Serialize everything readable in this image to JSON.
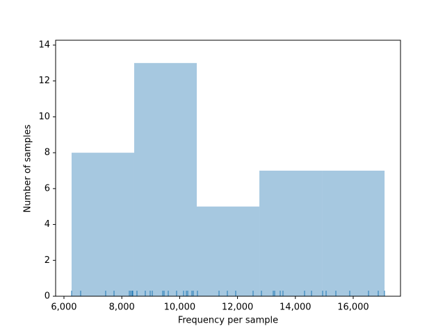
{
  "chart_data": {
    "type": "histogram",
    "x_label": "Frequency per sample",
    "y_label": "Number of samples",
    "bins": [
      6264,
      8428,
      10592,
      12756,
      14920,
      17084
    ],
    "counts": [
      8,
      13,
      5,
      7,
      7
    ],
    "color": "#a6c8e0",
    "rug": [
      6264,
      6577,
      7442,
      7731,
      8260,
      8308,
      8356,
      8380,
      8524,
      8812,
      8981,
      9053,
      9414,
      9462,
      9606,
      9894,
      10135,
      10231,
      10279,
      10423,
      10471,
      10615,
      11361,
      11649,
      11938,
      12539,
      12827,
      13236,
      13284,
      13476,
      13572,
      14318,
      14558,
      14943,
      15063,
      15400,
      15880,
      16530,
      16866,
      17082
    ],
    "rug_color": "#1f77b4",
    "xlim": [
      5712,
      17635
    ],
    "xticks": [
      {
        "value": 6000,
        "label": "6,000"
      },
      {
        "value": 8000,
        "label": "8,000"
      },
      {
        "value": 10000,
        "label": "10,000"
      },
      {
        "value": 12000,
        "label": "12,000"
      },
      {
        "value": 14000,
        "label": "14,000"
      },
      {
        "value": 16000,
        "label": "16,000"
      }
    ],
    "ylim": [
      0,
      14.27
    ],
    "yticks": [
      0,
      2,
      4,
      6,
      8,
      10,
      12,
      14
    ]
  }
}
